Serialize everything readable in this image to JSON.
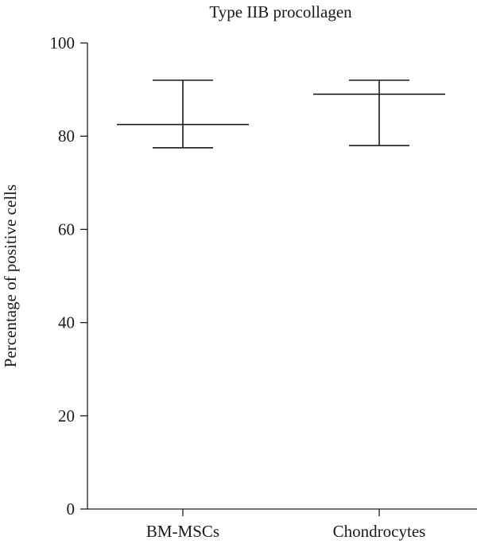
{
  "chart_data": {
    "type": "box",
    "title": "Type IIB procollagen",
    "xlabel": "",
    "ylabel": "Percentage of positive cells",
    "ylim": [
      0,
      100
    ],
    "yticks": [
      "0",
      "20",
      "40",
      "60",
      "80",
      "100"
    ],
    "categories": [
      "BM-MSCs",
      "Chondrocytes"
    ],
    "series": [
      {
        "mean": 82.5,
        "upper": 92,
        "lower": 77.5
      },
      {
        "mean": 89,
        "upper": 92,
        "lower": 78
      }
    ],
    "grid": false,
    "legend": "none"
  }
}
